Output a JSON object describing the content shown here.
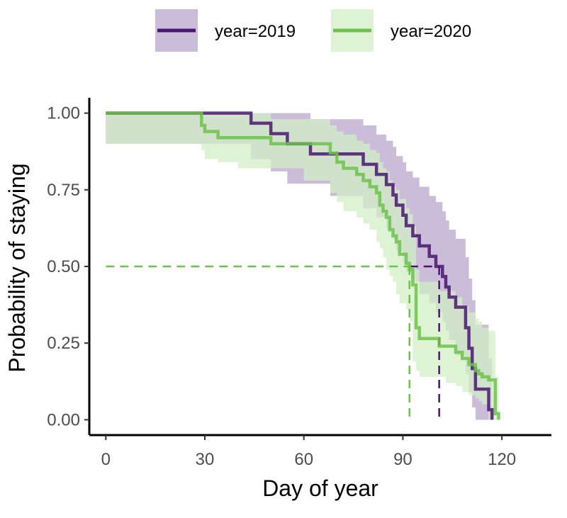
{
  "chart_data": {
    "type": "line",
    "subtype": "kaplan-meier step",
    "xlabel": "Day of year",
    "ylabel": "Probability of staying",
    "xlim": [
      -5,
      135
    ],
    "ylim": [
      -0.05,
      1.05
    ],
    "xticks": [
      0,
      30,
      60,
      90,
      120
    ],
    "yticks": [
      0.0,
      0.25,
      0.5,
      0.75,
      1.0
    ],
    "ytick_labels": [
      "0.00",
      "0.25",
      "0.50",
      "0.75",
      "1.00"
    ],
    "legend_position": "top",
    "grid": false,
    "median_line_y": 0.5,
    "series": [
      {
        "name": "year=2019",
        "color": "#4a1570",
        "band_color": "#b9a6cc",
        "median_x": 101,
        "x": [
          0,
          44,
          50,
          55,
          62,
          68,
          78,
          82,
          85,
          87,
          88,
          90,
          91,
          93,
          95,
          98,
          100,
          102,
          103,
          104,
          106,
          109,
          110,
          111,
          112,
          116,
          117
        ],
        "y": [
          1.0,
          0.967,
          0.933,
          0.9,
          0.867,
          0.867,
          0.833,
          0.8,
          0.767,
          0.733,
          0.7,
          0.667,
          0.633,
          0.6,
          0.567,
          0.533,
          0.5,
          0.467,
          0.433,
          0.4,
          0.367,
          0.3,
          0.233,
          0.167,
          0.1,
          0.033,
          0.0
        ],
        "upper": [
          1.0,
          1.0,
          1.0,
          1.0,
          0.98,
          0.98,
          0.96,
          0.93,
          0.91,
          0.89,
          0.86,
          0.84,
          0.81,
          0.79,
          0.76,
          0.73,
          0.71,
          0.68,
          0.65,
          0.62,
          0.59,
          0.53,
          0.46,
          0.39,
          0.31,
          0.2,
          0.2
        ],
        "lower": [
          1.0,
          0.9,
          0.85,
          0.81,
          0.77,
          0.77,
          0.73,
          0.69,
          0.66,
          0.62,
          0.59,
          0.55,
          0.51,
          0.48,
          0.45,
          0.41,
          0.38,
          0.35,
          0.32,
          0.29,
          0.26,
          0.21,
          0.15,
          0.09,
          0.04,
          0.0,
          0.0
        ]
      },
      {
        "name": "year=2020",
        "color": "#6cc24a",
        "band_color": "#d2efc6",
        "median_x": 92,
        "x": [
          0,
          29,
          30,
          34,
          40,
          50,
          60,
          68,
          70,
          72,
          76,
          78,
          80,
          82,
          83,
          84,
          85,
          86,
          87,
          88,
          89,
          91,
          92,
          93,
          94,
          95,
          101,
          103,
          106,
          108,
          110,
          112,
          113,
          114,
          116,
          118,
          119
        ],
        "y": [
          1.0,
          0.96,
          0.94,
          0.92,
          0.92,
          0.9,
          0.9,
          0.87,
          0.84,
          0.82,
          0.8,
          0.78,
          0.76,
          0.74,
          0.7,
          0.68,
          0.66,
          0.62,
          0.6,
          0.58,
          0.54,
          0.51,
          0.49,
          0.44,
          0.3,
          0.265,
          0.24,
          0.24,
          0.22,
          0.2,
          0.18,
          0.16,
          0.15,
          0.14,
          0.13,
          0.02,
          0.0
        ],
        "upper": [
          1.0,
          1.0,
          1.0,
          1.0,
          1.0,
          0.98,
          0.98,
          0.96,
          0.94,
          0.93,
          0.91,
          0.9,
          0.88,
          0.87,
          0.84,
          0.82,
          0.81,
          0.78,
          0.76,
          0.75,
          0.72,
          0.69,
          0.67,
          0.63,
          0.49,
          0.45,
          0.42,
          0.42,
          0.4,
          0.37,
          0.35,
          0.33,
          0.32,
          0.3,
          0.29,
          0.14,
          0.14
        ],
        "lower": [
          1.0,
          0.9,
          0.88,
          0.85,
          0.84,
          0.82,
          0.82,
          0.78,
          0.74,
          0.71,
          0.68,
          0.66,
          0.64,
          0.62,
          0.58,
          0.56,
          0.53,
          0.49,
          0.47,
          0.45,
          0.41,
          0.38,
          0.36,
          0.32,
          0.19,
          0.16,
          0.14,
          0.14,
          0.12,
          0.11,
          0.09,
          0.08,
          0.07,
          0.06,
          0.05,
          0.0,
          0.0
        ]
      }
    ]
  }
}
